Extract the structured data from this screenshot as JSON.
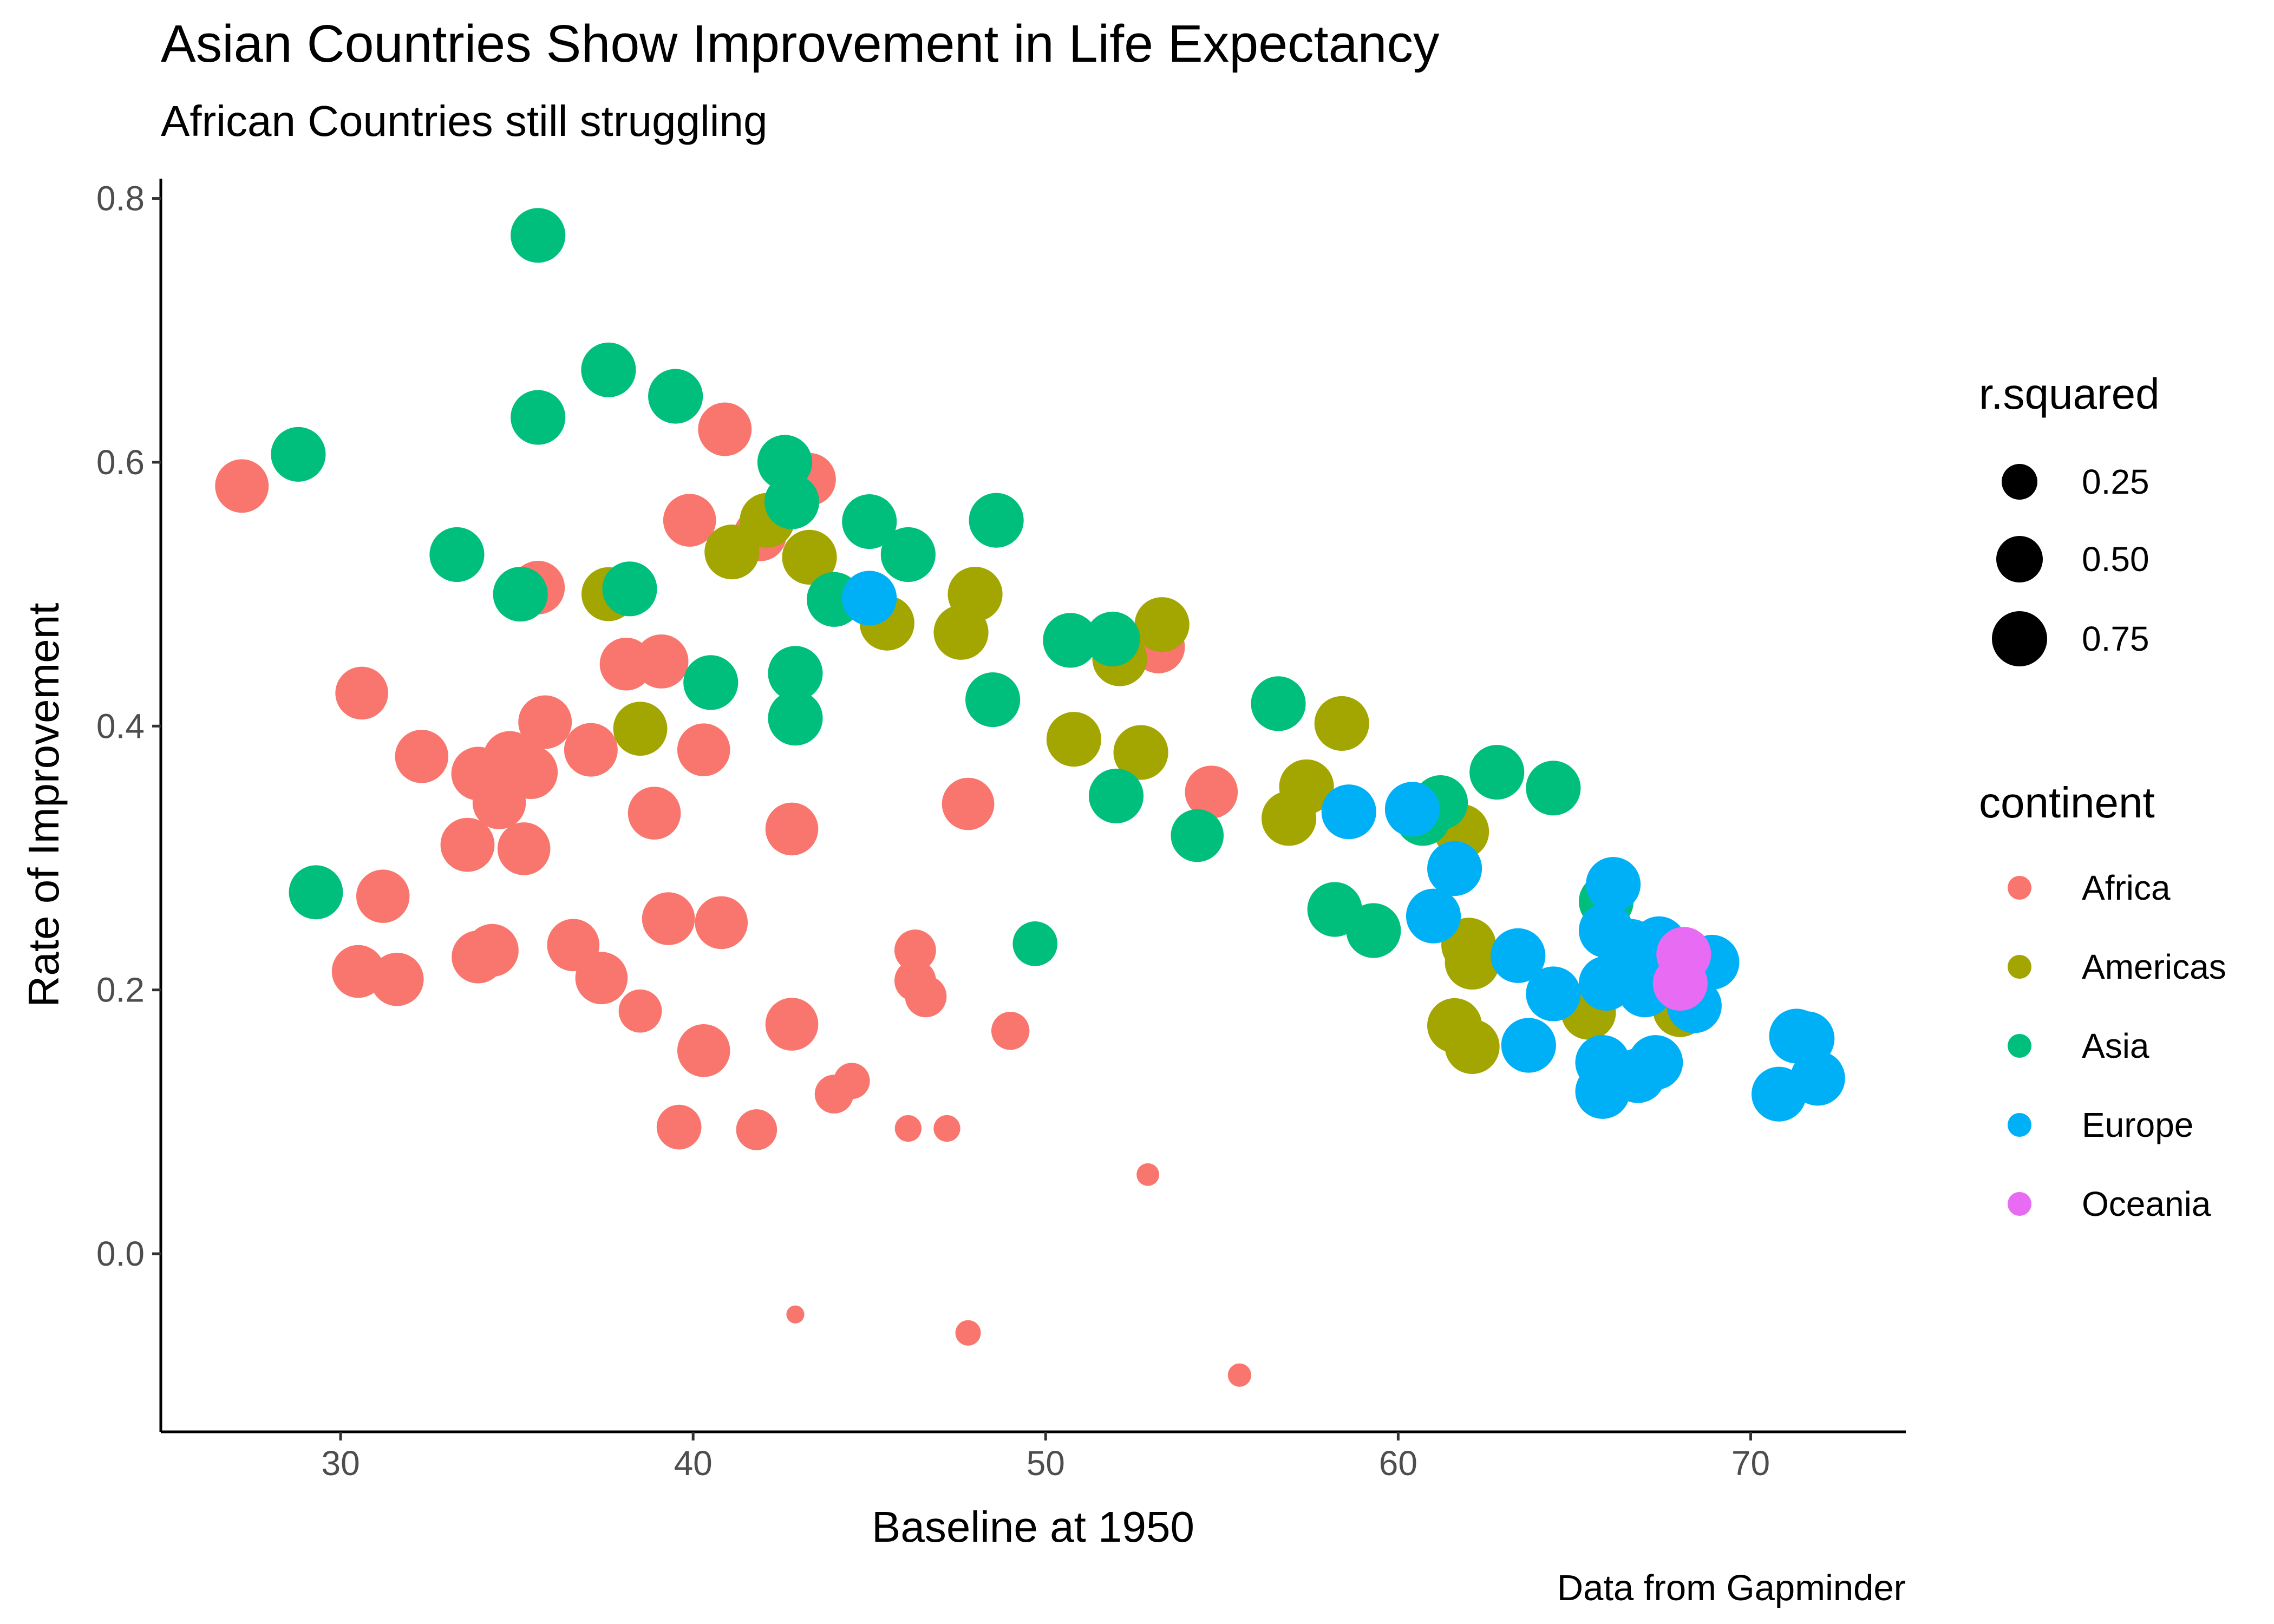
{
  "title": "Asian Countries Show Improvement in Life Expectancy",
  "subtitle": "African Countries still struggling",
  "caption": "Data from Gapminder",
  "colors": {
    "Africa": "#F8766D",
    "Americas": "#A3A500",
    "Asia": "#00BF7D",
    "Europe": "#00B0F6",
    "Oceania": "#E76BF3"
  },
  "legends": {
    "size": {
      "title": "r.squared",
      "labels": [
        "0.25",
        "0.50",
        "0.75"
      ],
      "values": [
        0.25,
        0.5,
        0.75
      ]
    },
    "color": {
      "title": "continent",
      "labels": [
        "Africa",
        "Americas",
        "Asia",
        "Europe",
        "Oceania"
      ]
    }
  },
  "chart_data": {
    "type": "scatter",
    "title": "Asian Countries Show Improvement in Life Expectancy",
    "subtitle": "African Countries still struggling",
    "caption": "Data from Gapminder",
    "xlabel": "Baseline at 1950",
    "ylabel": "Rate of Improvement",
    "xlim": [
      24.9,
      74.4
    ],
    "ylim": [
      -0.135,
      0.815
    ],
    "x_ticks": [
      30,
      40,
      50,
      60,
      70
    ],
    "x_tick_labels": [
      "30",
      "40",
      "50",
      "60",
      "70"
    ],
    "y_ticks": [
      0.0,
      0.2,
      0.4,
      0.6,
      0.8
    ],
    "y_tick_labels": [
      "0.0",
      "0.2",
      "0.4",
      "0.6",
      "0.8"
    ],
    "grid": false,
    "legend_position": "right",
    "size_legend": {
      "title": "r.squared",
      "breaks": [
        0.25,
        0.5,
        0.75
      ]
    },
    "color_legend": {
      "title": "continent",
      "entries": [
        "Africa",
        "Americas",
        "Asia",
        "Europe",
        "Oceania"
      ]
    },
    "series": [
      {
        "name": "Africa",
        "points": [
          {
            "x": 27.2,
            "y": 0.582,
            "r2": 0.93
          },
          {
            "x": 30.6,
            "y": 0.425,
            "r2": 0.9
          },
          {
            "x": 30.5,
            "y": 0.214,
            "r2": 0.9
          },
          {
            "x": 31.2,
            "y": 0.271,
            "r2": 0.92
          },
          {
            "x": 31.6,
            "y": 0.208,
            "r2": 0.92
          },
          {
            "x": 32.3,
            "y": 0.377,
            "r2": 0.92
          },
          {
            "x": 33.6,
            "y": 0.31,
            "r2": 0.95
          },
          {
            "x": 33.9,
            "y": 0.364,
            "r2": 0.93
          },
          {
            "x": 33.9,
            "y": 0.225,
            "r2": 0.9
          },
          {
            "x": 34.3,
            "y": 0.23,
            "r2": 0.9
          },
          {
            "x": 34.5,
            "y": 0.342,
            "r2": 0.92
          },
          {
            "x": 34.8,
            "y": 0.376,
            "r2": 0.92
          },
          {
            "x": 35.2,
            "y": 0.307,
            "r2": 0.9
          },
          {
            "x": 35.4,
            "y": 0.365,
            "r2": 0.93
          },
          {
            "x": 35.6,
            "y": 0.505,
            "r2": 0.93
          },
          {
            "x": 35.8,
            "y": 0.403,
            "r2": 0.93
          },
          {
            "x": 36.6,
            "y": 0.234,
            "r2": 0.88
          },
          {
            "x": 37.1,
            "y": 0.382,
            "r2": 0.93
          },
          {
            "x": 37.4,
            "y": 0.209,
            "r2": 0.88
          },
          {
            "x": 38.1,
            "y": 0.447,
            "r2": 0.9
          },
          {
            "x": 38.5,
            "y": 0.184,
            "r2": 0.55
          },
          {
            "x": 38.9,
            "y": 0.334,
            "r2": 0.9
          },
          {
            "x": 39.1,
            "y": 0.449,
            "r2": 0.95
          },
          {
            "x": 39.3,
            "y": 0.254,
            "r2": 0.9
          },
          {
            "x": 39.6,
            "y": 0.096,
            "r2": 0.6
          },
          {
            "x": 39.9,
            "y": 0.556,
            "r2": 0.9
          },
          {
            "x": 40.3,
            "y": 0.382,
            "r2": 0.9
          },
          {
            "x": 40.3,
            "y": 0.154,
            "r2": 0.9
          },
          {
            "x": 40.8,
            "y": 0.251,
            "r2": 0.9
          },
          {
            "x": 40.9,
            "y": 0.625,
            "r2": 0.93
          },
          {
            "x": 41.8,
            "y": 0.094,
            "r2": 0.48
          },
          {
            "x": 41.9,
            "y": 0.545,
            "r2": 0.9
          },
          {
            "x": 42.8,
            "y": 0.322,
            "r2": 0.9
          },
          {
            "x": 42.8,
            "y": 0.174,
            "r2": 0.9
          },
          {
            "x": 42.9,
            "y": -0.046,
            "r2": 0.04
          },
          {
            "x": 43.3,
            "y": 0.587,
            "r2": 0.9
          },
          {
            "x": 44.0,
            "y": 0.121,
            "r2": 0.42
          },
          {
            "x": 44.5,
            "y": 0.131,
            "r2": 0.35
          },
          {
            "x": 46.1,
            "y": 0.095,
            "r2": 0.15
          },
          {
            "x": 46.3,
            "y": 0.23,
            "r2": 0.5
          },
          {
            "x": 46.3,
            "y": 0.207,
            "r2": 0.5
          },
          {
            "x": 46.6,
            "y": 0.195,
            "r2": 0.5
          },
          {
            "x": 47.2,
            "y": 0.095,
            "r2": 0.15
          },
          {
            "x": 47.8,
            "y": 0.341,
            "r2": 0.88
          },
          {
            "x": 47.8,
            "y": -0.06,
            "r2": 0.13
          },
          {
            "x": 49.0,
            "y": 0.169,
            "r2": 0.4
          },
          {
            "x": 52.9,
            "y": 0.06,
            "r2": 0.09
          },
          {
            "x": 53.2,
            "y": 0.46,
            "r2": 0.9
          },
          {
            "x": 54.7,
            "y": 0.35,
            "r2": 0.9
          },
          {
            "x": 55.5,
            "y": -0.092,
            "r2": 0.1
          }
        ]
      },
      {
        "name": "Americas",
        "points": [
          {
            "x": 37.6,
            "y": 0.5,
            "r2": 0.95
          },
          {
            "x": 38.5,
            "y": 0.398,
            "r2": 0.95
          },
          {
            "x": 41.1,
            "y": 0.532,
            "r2": 0.98
          },
          {
            "x": 42.1,
            "y": 0.556,
            "r2": 0.98
          },
          {
            "x": 43.3,
            "y": 0.528,
            "r2": 0.98
          },
          {
            "x": 45.5,
            "y": 0.478,
            "r2": 0.98
          },
          {
            "x": 47.6,
            "y": 0.471,
            "r2": 0.98
          },
          {
            "x": 48.0,
            "y": 0.5,
            "r2": 0.98
          },
          {
            "x": 50.8,
            "y": 0.39,
            "r2": 0.98
          },
          {
            "x": 52.1,
            "y": 0.451,
            "r2": 0.98
          },
          {
            "x": 52.7,
            "y": 0.38,
            "r2": 0.98
          },
          {
            "x": 53.3,
            "y": 0.477,
            "r2": 0.98
          },
          {
            "x": 56.9,
            "y": 0.33,
            "r2": 0.98
          },
          {
            "x": 57.4,
            "y": 0.354,
            "r2": 0.98
          },
          {
            "x": 58.4,
            "y": 0.402,
            "r2": 0.98
          },
          {
            "x": 61.8,
            "y": 0.32,
            "r2": 0.98
          },
          {
            "x": 62.0,
            "y": 0.234,
            "r2": 0.98
          },
          {
            "x": 62.1,
            "y": 0.221,
            "r2": 0.98
          },
          {
            "x": 61.6,
            "y": 0.173,
            "r2": 0.98
          },
          {
            "x": 62.1,
            "y": 0.157,
            "r2": 0.98
          },
          {
            "x": 65.4,
            "y": 0.183,
            "r2": 0.98
          },
          {
            "x": 66.6,
            "y": 0.211,
            "r2": 0.98
          },
          {
            "x": 68.0,
            "y": 0.185,
            "r2": 0.98
          }
        ]
      },
      {
        "name": "Asia",
        "points": [
          {
            "x": 28.8,
            "y": 0.606,
            "r2": 0.98
          },
          {
            "x": 29.3,
            "y": 0.274,
            "r2": 0.95
          },
          {
            "x": 33.3,
            "y": 0.53,
            "r2": 0.98
          },
          {
            "x": 35.1,
            "y": 0.5,
            "r2": 0.98
          },
          {
            "x": 35.6,
            "y": 0.772,
            "r2": 0.98
          },
          {
            "x": 35.6,
            "y": 0.634,
            "r2": 0.98
          },
          {
            "x": 37.6,
            "y": 0.67,
            "r2": 0.98
          },
          {
            "x": 38.2,
            "y": 0.504,
            "r2": 0.98
          },
          {
            "x": 39.5,
            "y": 0.65,
            "r2": 0.98
          },
          {
            "x": 40.5,
            "y": 0.433,
            "r2": 0.98
          },
          {
            "x": 42.6,
            "y": 0.6,
            "r2": 0.98
          },
          {
            "x": 42.8,
            "y": 0.57,
            "r2": 0.98
          },
          {
            "x": 42.9,
            "y": 0.44,
            "r2": 0.98
          },
          {
            "x": 42.9,
            "y": 0.406,
            "r2": 0.98
          },
          {
            "x": 44.0,
            "y": 0.496,
            "r2": 0.98
          },
          {
            "x": 45.0,
            "y": 0.555,
            "r2": 0.98
          },
          {
            "x": 46.1,
            "y": 0.53,
            "r2": 0.98
          },
          {
            "x": 48.5,
            "y": 0.42,
            "r2": 0.98
          },
          {
            "x": 48.6,
            "y": 0.556,
            "r2": 0.98
          },
          {
            "x": 49.7,
            "y": 0.235,
            "r2": 0.6
          },
          {
            "x": 50.7,
            "y": 0.465,
            "r2": 0.98
          },
          {
            "x": 51.9,
            "y": 0.466,
            "r2": 0.98
          },
          {
            "x": 52.0,
            "y": 0.347,
            "r2": 0.98
          },
          {
            "x": 54.3,
            "y": 0.317,
            "r2": 0.9
          },
          {
            "x": 56.6,
            "y": 0.417,
            "r2": 0.98
          },
          {
            "x": 58.2,
            "y": 0.261,
            "r2": 0.98
          },
          {
            "x": 59.3,
            "y": 0.245,
            "r2": 0.98
          },
          {
            "x": 60.7,
            "y": 0.33,
            "r2": 0.98
          },
          {
            "x": 61.2,
            "y": 0.342,
            "r2": 0.98
          },
          {
            "x": 62.8,
            "y": 0.365,
            "r2": 0.98
          },
          {
            "x": 64.4,
            "y": 0.353,
            "r2": 0.98
          },
          {
            "x": 65.9,
            "y": 0.267,
            "r2": 0.98
          }
        ]
      },
      {
        "name": "Europe",
        "points": [
          {
            "x": 45.0,
            "y": 0.497,
            "r2": 0.98
          },
          {
            "x": 58.6,
            "y": 0.335,
            "r2": 0.98
          },
          {
            "x": 60.4,
            "y": 0.337,
            "r2": 0.98
          },
          {
            "x": 61.0,
            "y": 0.256,
            "r2": 0.98
          },
          {
            "x": 61.6,
            "y": 0.292,
            "r2": 0.98
          },
          {
            "x": 63.4,
            "y": 0.226,
            "r2": 0.98
          },
          {
            "x": 63.7,
            "y": 0.158,
            "r2": 0.98
          },
          {
            "x": 64.4,
            "y": 0.197,
            "r2": 0.98
          },
          {
            "x": 65.8,
            "y": 0.145,
            "r2": 0.98
          },
          {
            "x": 65.8,
            "y": 0.123,
            "r2": 0.98
          },
          {
            "x": 65.9,
            "y": 0.205,
            "r2": 0.98
          },
          {
            "x": 65.9,
            "y": 0.245,
            "r2": 0.98
          },
          {
            "x": 66.1,
            "y": 0.28,
            "r2": 0.98
          },
          {
            "x": 66.6,
            "y": 0.233,
            "r2": 0.98
          },
          {
            "x": 66.8,
            "y": 0.135,
            "r2": 0.98
          },
          {
            "x": 67.0,
            "y": 0.2,
            "r2": 0.98
          },
          {
            "x": 67.3,
            "y": 0.145,
            "r2": 0.98
          },
          {
            "x": 67.4,
            "y": 0.235,
            "r2": 0.98
          },
          {
            "x": 68.4,
            "y": 0.188,
            "r2": 0.98
          },
          {
            "x": 68.9,
            "y": 0.221,
            "r2": 0.98
          },
          {
            "x": 70.8,
            "y": 0.121,
            "r2": 0.98
          },
          {
            "x": 71.3,
            "y": 0.165,
            "r2": 0.98
          },
          {
            "x": 71.6,
            "y": 0.163,
            "r2": 0.98
          },
          {
            "x": 71.9,
            "y": 0.133,
            "r2": 0.98
          }
        ]
      },
      {
        "name": "Oceania",
        "points": [
          {
            "x": 68.1,
            "y": 0.227,
            "r2": 0.98
          },
          {
            "x": 68.0,
            "y": 0.205,
            "r2": 0.98
          }
        ]
      }
    ]
  }
}
